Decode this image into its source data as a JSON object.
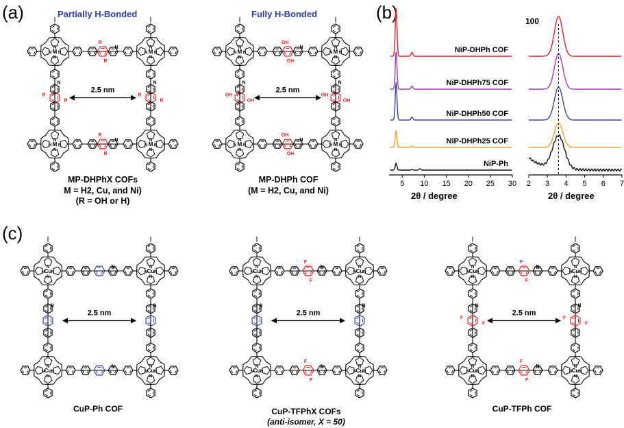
{
  "panel_a": {
    "letter": "(a)",
    "left_title": "Partially H-Bonded",
    "right_title": "Fully H-Bonded",
    "distance": "2.5 nm",
    "left_caption_1": "MP-DHPhX COFs",
    "left_caption_2": "M = H2, Cu, and Ni)",
    "left_caption_3": "(R = OH or H)",
    "right_caption_1": "MP-DHPh COF",
    "right_caption_2": "(M = H2, Cu, and Ni)",
    "metal_label": "M",
    "substituent_label": "R",
    "hydroxyl_label": "OH",
    "imine_n": "N"
  },
  "panel_b": {
    "letter": "(b)",
    "peak_label": "100",
    "x_axis_label": "2θ / degree",
    "left_ticks": [
      "5",
      "10",
      "15",
      "20",
      "25",
      "30"
    ],
    "right_ticks": [
      "2",
      "3",
      "4",
      "5",
      "6",
      "7"
    ],
    "traces": [
      {
        "label": "NiP-DHPh COF",
        "color": "#ee1c25"
      },
      {
        "label": "NiP-DHPh75 COF",
        "color": "#a03bb0"
      },
      {
        "label": "NiP-DHPh50 COF",
        "color": "#3b3fb4"
      },
      {
        "label": "NiP-DHPh25 COF",
        "color": "#f5a31a"
      },
      {
        "label": "NiP-Ph",
        "color": "#111111"
      }
    ]
  },
  "panel_c": {
    "letter": "(c)",
    "distance": "2.5 nm",
    "metal_label": "Cu",
    "fluoro_label": "F",
    "imine_n": "N",
    "captions": [
      "CuP-Ph COF",
      "CuP-TFPhX COFs",
      "(anti-isomer, X = 50)",
      "CuP-TFPh COF"
    ]
  },
  "chart_data": {
    "type": "line",
    "title": "",
    "xlabel": "2θ / degree",
    "ylabel": "",
    "panels": [
      {
        "xlim": [
          2,
          30
        ],
        "peak_positions": [
          3.6,
          7.2
        ]
      },
      {
        "xlim": [
          2,
          7
        ],
        "peak_positions": [
          3.6
        ]
      }
    ],
    "series": [
      {
        "name": "NiP-DHPh COF",
        "peak_2theta": 3.6,
        "relative_intensity": 1.0
      },
      {
        "name": "NiP-DHPh75 COF",
        "peak_2theta": 3.6,
        "relative_intensity": 0.85
      },
      {
        "name": "NiP-DHPh50 COF",
        "peak_2theta": 3.6,
        "relative_intensity": 0.8
      },
      {
        "name": "NiP-DHPh25 COF",
        "peak_2theta": 3.6,
        "relative_intensity": 0.4
      },
      {
        "name": "NiP-Ph",
        "peak_2theta": 3.6,
        "relative_intensity": 0.12
      }
    ],
    "annotations": [
      "100"
    ]
  },
  "colors": {
    "blue_text": "#2a3bb3",
    "red_linker": "#ee1c25",
    "blue_linker": "#3b3fb4"
  }
}
